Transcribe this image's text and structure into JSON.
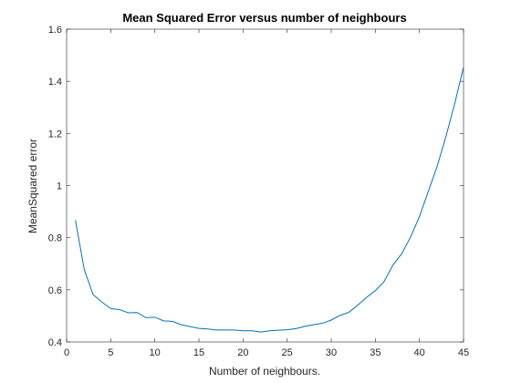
{
  "chart_data": {
    "type": "line",
    "title": "Mean Squared Error versus number of neighbours",
    "xlabel": "Number of neighbours.",
    "ylabel": "MeanSquared error",
    "xlim": [
      0,
      45
    ],
    "ylim": [
      0.4,
      1.6
    ],
    "xticks": [
      0,
      5,
      10,
      15,
      20,
      25,
      30,
      35,
      40,
      45
    ],
    "yticks": [
      0.4,
      0.6,
      0.8,
      1,
      1.2,
      1.4,
      1.6
    ],
    "grid": false,
    "line_color": "#0072BD",
    "series": [
      {
        "x": [
          1,
          2,
          3,
          4,
          5,
          6,
          7,
          8,
          9,
          10,
          11,
          12,
          13,
          14,
          15,
          16,
          17,
          18,
          19,
          20,
          21,
          22,
          23,
          24,
          25,
          26,
          27,
          28,
          29,
          30,
          31,
          32,
          33,
          34,
          35,
          36,
          37,
          38,
          39,
          40,
          41,
          42,
          43,
          44,
          45
        ],
        "values": [
          0.867,
          0.678,
          0.582,
          0.553,
          0.528,
          0.524,
          0.512,
          0.513,
          0.493,
          0.495,
          0.481,
          0.479,
          0.466,
          0.459,
          0.452,
          0.45,
          0.446,
          0.446,
          0.446,
          0.443,
          0.443,
          0.438,
          0.443,
          0.445,
          0.447,
          0.451,
          0.46,
          0.466,
          0.472,
          0.484,
          0.502,
          0.514,
          0.541,
          0.571,
          0.597,
          0.632,
          0.695,
          0.739,
          0.803,
          0.881,
          0.977,
          1.073,
          1.188,
          1.315,
          1.455
        ]
      }
    ]
  }
}
